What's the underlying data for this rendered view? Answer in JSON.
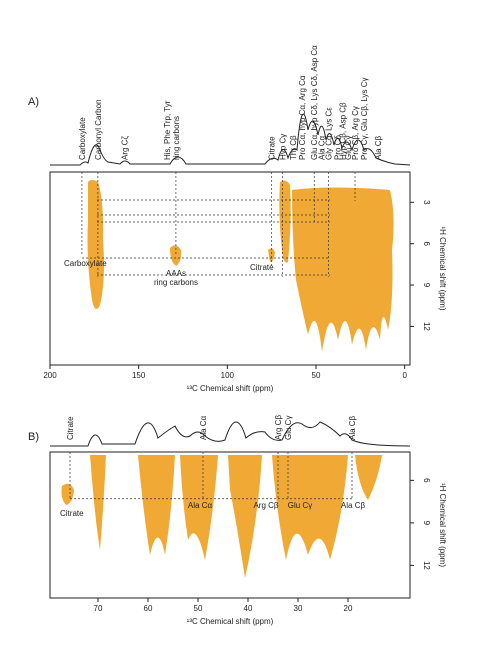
{
  "chart_data": [
    {
      "type": "contour",
      "panel": "A)",
      "xlabel": "¹³C Chemical shift (ppm)",
      "ylabel": "¹H Chemical shift (ppm)",
      "xlim": [
        200,
        -3
      ],
      "xticks": [
        200,
        150,
        100,
        50,
        0
      ],
      "ylim": [
        0.8,
        14.8
      ],
      "yticks": [
        3,
        6,
        9,
        12
      ],
      "color": "#f0a020",
      "annotations": [
        {
          "lines": [
            "Carboxylate"
          ],
          "shift": 182,
          "h": 6.8
        },
        {
          "lines": [
            "Carbonyl Carbon"
          ],
          "shift": 173,
          "h": 8.4
        },
        {
          "lines": [
            "Arg Cζ"
          ],
          "shift": 158
        },
        {
          "lines": [
            "His, Phe Trp, Tyr",
            "ring carbons"
          ],
          "shift": 129,
          "h": 6.9
        },
        {
          "lines": [
            "Citrate"
          ],
          "shift": 75,
          "h": 7.8
        },
        {
          "lines": [
            "Hyp Cγ"
          ],
          "shift": 69,
          "h": 8.4
        },
        {
          "lines": [
            "Thr Cβ"
          ],
          "shift": 63
        },
        {
          "lines": [
            "Pro Cα, hyp Cα, Arg Cα"
          ],
          "shift": 58
        },
        {
          "lines": [
            "Glu Cα, hyp Cδ, Lys Cδ, Asp Cα"
          ],
          "shift": 51,
          "h": 4.4
        },
        {
          "lines": [
            "Ala Cα"
          ],
          "shift": 47
        },
        {
          "lines": [
            "Gly Cα, Lys Cε"
          ],
          "shift": 43,
          "h": 8.4
        },
        {
          "lines": [
            "Pro Cδ"
          ],
          "shift": 38
        },
        {
          "lines": [
            "Hyp Cβ, Asp Cβ"
          ],
          "shift": 35
        },
        {
          "lines": [
            "Glu Cγ"
          ],
          "shift": 32
        },
        {
          "lines": [
            "Pro Cβ, Arg Cγ"
          ],
          "shift": 28,
          "h": 2.9
        },
        {
          "lines": [
            "Pro Cγ, Glu Cβ, Lys Cγ"
          ],
          "shift": 23
        },
        {
          "lines": [
            "Ala Cβ"
          ],
          "shift": 15
        }
      ],
      "inner_labels": [
        "Carboxylate",
        "AAAs",
        "ring carbons",
        "Citrate"
      ]
    },
    {
      "type": "contour",
      "panel": "B)",
      "xlabel": "¹³C Chemical shift (ppm)",
      "ylabel": "¹H Chemical shift (ppm)",
      "xlim": [
        79.6,
        7.6
      ],
      "xticks": [
        70,
        60,
        50,
        40,
        30,
        20
      ],
      "ylim": [
        4,
        14.3
      ],
      "yticks": [
        6,
        9,
        12
      ],
      "color": "#f0a020",
      "annotations": [
        {
          "lines": [
            "Citrate"
          ],
          "shift": 75.6,
          "h": 7.3
        },
        {
          "lines": [
            "Ala Cα"
          ],
          "shift": 49,
          "h": 7.3
        },
        {
          "lines": [
            "Arg Cβ"
          ],
          "shift": 34,
          "h": 7.3
        },
        {
          "lines": [
            "Glu Cγ"
          ],
          "shift": 32,
          "h": 7.3
        },
        {
          "lines": [
            "Ala Cβ"
          ],
          "shift": 19.2,
          "h": 7.3
        }
      ],
      "inner_labels": [
        "Citrate",
        "Ala Cα",
        "Arg Cβ",
        "Glu Cγ",
        "Ala Cβ"
      ]
    }
  ]
}
